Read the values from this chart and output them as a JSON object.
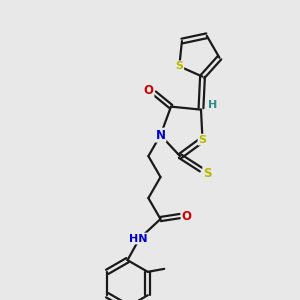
{
  "background_color": "#e8e8e8",
  "bond_color": "#1a1a1a",
  "atom_colors": {
    "S": "#b8b800",
    "N": "#0000cc",
    "O": "#cc0000",
    "H": "#2e8b8b",
    "C": "#1a1a1a"
  },
  "figsize": [
    3.0,
    3.0
  ],
  "dpi": 100
}
